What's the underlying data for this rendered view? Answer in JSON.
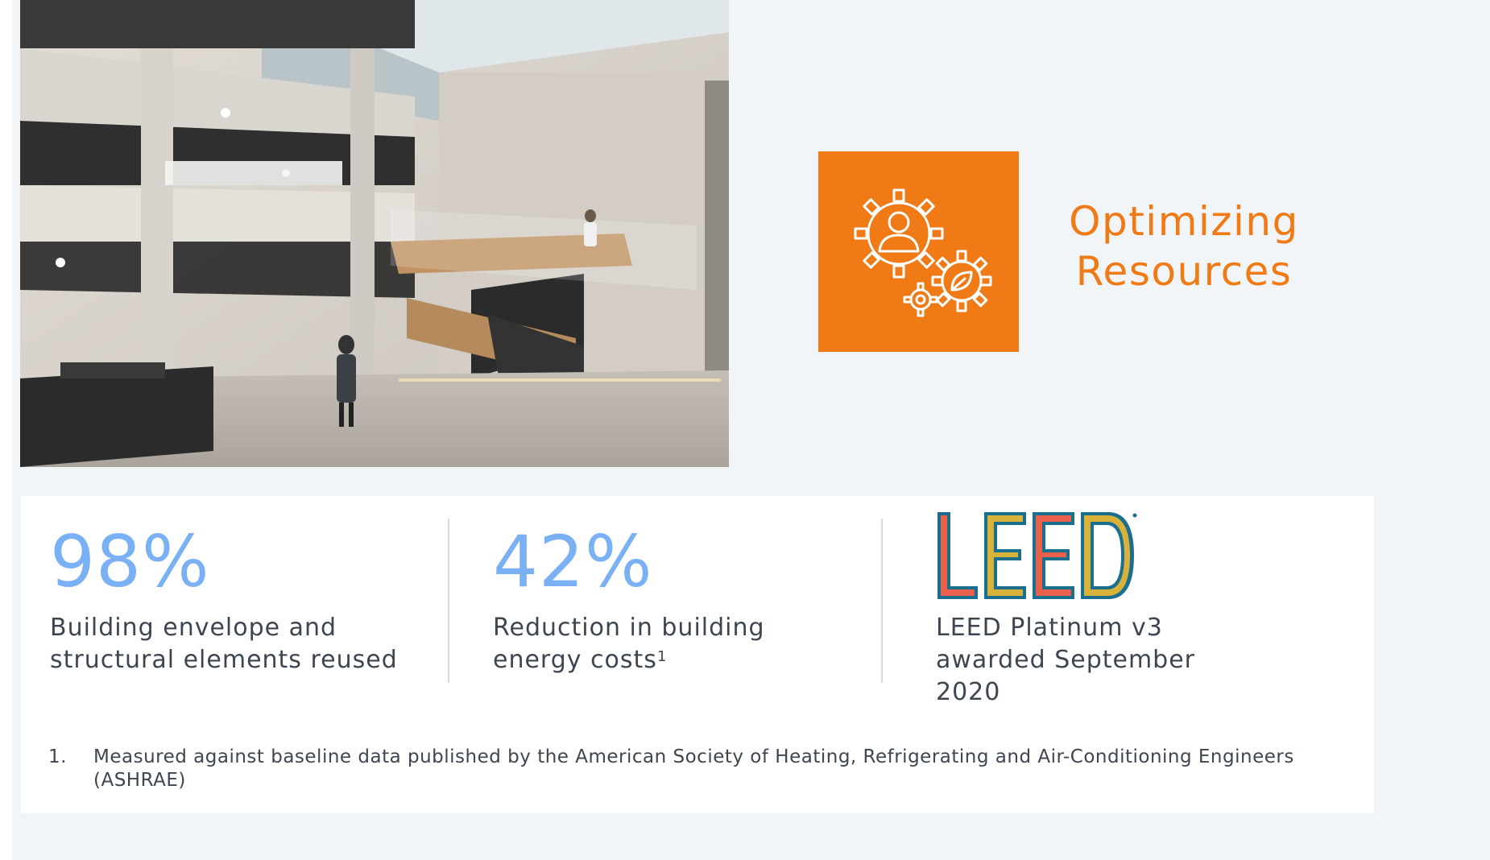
{
  "photo": {
    "icon": "atrium-staircase-photo"
  },
  "feature": {
    "icon": "gears-person-leaf-icon",
    "title_line1": "Optimizing",
    "title_line2": "Resources",
    "accent_color": "#ef7a16"
  },
  "stats": [
    {
      "value": "98%",
      "desc_line1": "Building envelope and",
      "desc_line2": "structural elements reused"
    },
    {
      "value": "42%",
      "desc_line1": "Reduction in building",
      "desc_line2": "energy costs",
      "footnote_ref": "1"
    },
    {
      "logo_text": "LEED",
      "logo_mark": "®",
      "desc_line1": "LEED Platinum v3",
      "desc_line2": "awarded September",
      "desc_line3": "2020"
    }
  ],
  "footnote": {
    "number": "1.",
    "text": "Measured against baseline data published by the American Society of Heating, Refrigerating and Air-Conditioning Engineers (ASHRAE)"
  },
  "colors": {
    "stat_value": "#7ab1f5",
    "text": "#3d4650",
    "background": "#f2f5f8"
  }
}
